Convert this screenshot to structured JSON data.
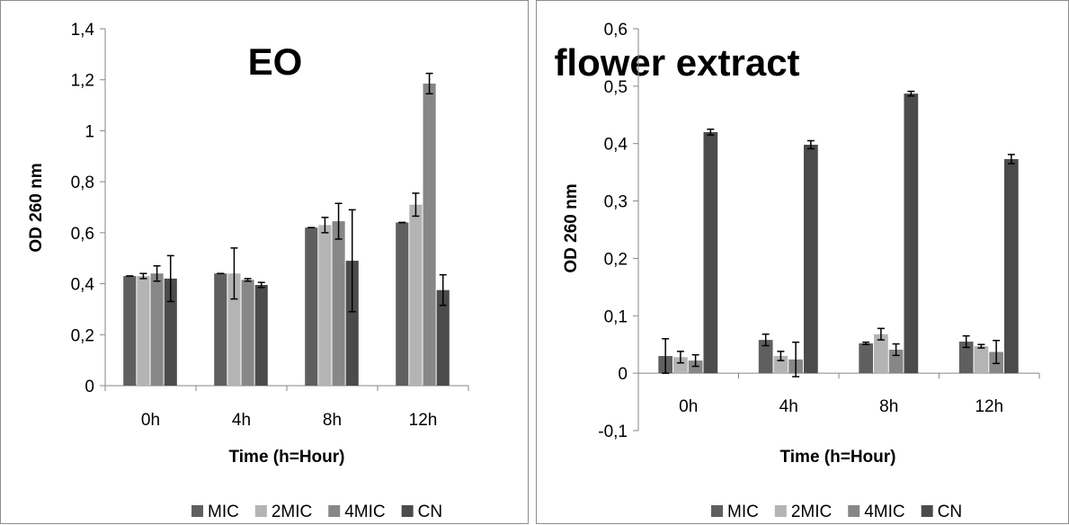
{
  "chart_data": [
    {
      "type": "bar",
      "title": "EO",
      "xlabel": "Time (h=Hour)",
      "ylabel": "OD 260 nm",
      "categories": [
        "0h",
        "4h",
        "8h",
        "12h"
      ],
      "ylim": [
        0,
        1.4
      ],
      "yticks": [
        "0",
        "0,2",
        "0,4",
        "0,6",
        "0,8",
        "1",
        "1,2",
        "1,4"
      ],
      "ytick_values": [
        0,
        0.2,
        0.4,
        0.6,
        0.8,
        1.0,
        1.2,
        1.4
      ],
      "grid": false,
      "legend_position": "bottom",
      "series": [
        {
          "name": "MIC",
          "color": "#5f5f5f",
          "values": [
            0.43,
            0.44,
            0.62,
            0.64
          ],
          "errors": [
            0.0,
            0.0,
            0.0,
            0.0
          ]
        },
        {
          "name": "2MIC",
          "color": "#b4b4b4",
          "values": [
            0.43,
            0.44,
            0.63,
            0.71
          ],
          "errors": [
            0.01,
            0.1,
            0.03,
            0.045
          ]
        },
        {
          "name": "4MIC",
          "color": "#878787",
          "values": [
            0.44,
            0.415,
            0.645,
            1.185
          ],
          "errors": [
            0.03,
            0.005,
            0.07,
            0.04
          ]
        },
        {
          "name": "CN",
          "color": "#4b4b4b",
          "values": [
            0.42,
            0.395,
            0.49,
            0.375
          ],
          "errors": [
            0.09,
            0.01,
            0.2,
            0.06
          ]
        }
      ]
    },
    {
      "type": "bar",
      "title": "flower extract",
      "xlabel": "Time (h=Hour)",
      "ylabel": "OD 260 nm",
      "categories": [
        "0h",
        "4h",
        "8h",
        "12h"
      ],
      "ylim": [
        -0.1,
        0.6
      ],
      "yticks": [
        "-0,1",
        "0",
        "0,1",
        "0,2",
        "0,3",
        "0,4",
        "0,5",
        "0,6"
      ],
      "ytick_values": [
        -0.1,
        0,
        0.1,
        0.2,
        0.3,
        0.4,
        0.5,
        0.6
      ],
      "grid": false,
      "legend_position": "bottom",
      "series": [
        {
          "name": "MIC",
          "color": "#5f5f5f",
          "values": [
            0.03,
            0.058,
            0.052,
            0.055
          ],
          "errors": [
            0.03,
            0.01,
            0.002,
            0.01
          ]
        },
        {
          "name": "2MIC",
          "color": "#b4b4b4",
          "values": [
            0.028,
            0.03,
            0.068,
            0.047
          ],
          "errors": [
            0.01,
            0.008,
            0.01,
            0.003
          ]
        },
        {
          "name": "4MIC",
          "color": "#878787",
          "values": [
            0.022,
            0.024,
            0.041,
            0.037
          ],
          "errors": [
            0.01,
            0.03,
            0.01,
            0.02
          ]
        },
        {
          "name": "CN",
          "color": "#4b4b4b",
          "values": [
            0.42,
            0.398,
            0.487,
            0.373
          ],
          "errors": [
            0.005,
            0.007,
            0.004,
            0.008
          ]
        }
      ]
    }
  ]
}
